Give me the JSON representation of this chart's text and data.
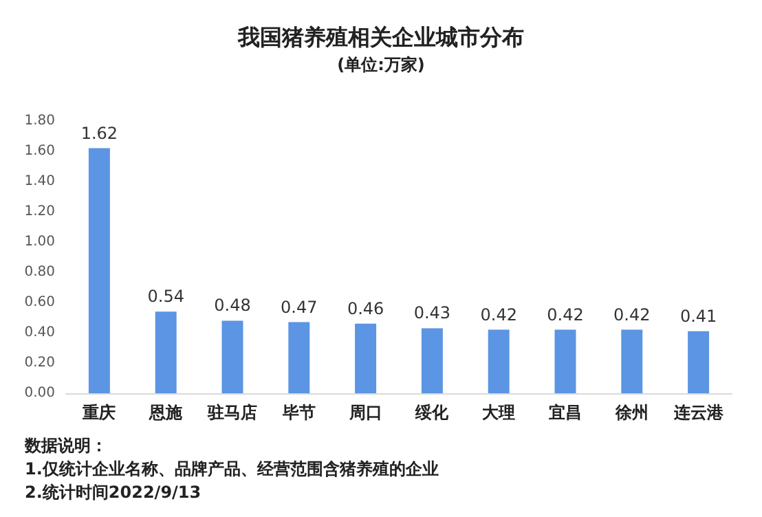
{
  "chart_data": {
    "type": "bar",
    "title": "我国猪养殖相关企业城市分布",
    "subtitle": "(单位:万家)",
    "categories": [
      "重庆",
      "恩施",
      "驻马店",
      "毕节",
      "周口",
      "绥化",
      "大理",
      "宜昌",
      "徐州",
      "连云港"
    ],
    "values": [
      1.62,
      0.54,
      0.48,
      0.47,
      0.46,
      0.43,
      0.42,
      0.42,
      0.42,
      0.41
    ],
    "color": "#5b95e3",
    "ylim": [
      0,
      1.8
    ],
    "yticks": [
      {
        "value": 0,
        "label": "0.00"
      },
      {
        "value": 0.2,
        "label": "0.20"
      },
      {
        "value": 0.4,
        "label": "0.40"
      },
      {
        "value": 0.6,
        "label": "0.60"
      },
      {
        "value": 0.8,
        "label": "0.80"
      },
      {
        "value": 1.0,
        "label": "1.00"
      },
      {
        "value": 1.2,
        "label": "1.20"
      },
      {
        "value": 1.4,
        "label": "1.40"
      },
      {
        "value": 1.6,
        "label": "1.60"
      },
      {
        "value": 1.8,
        "label": "1.80"
      }
    ],
    "grid": false,
    "data_labels": true,
    "annotations": [
      "数据说明：",
      "1.仅统计企业名称、品牌产品、经营范围含猪养殖的企业",
      "2.统计时间2022/9/13"
    ]
  }
}
